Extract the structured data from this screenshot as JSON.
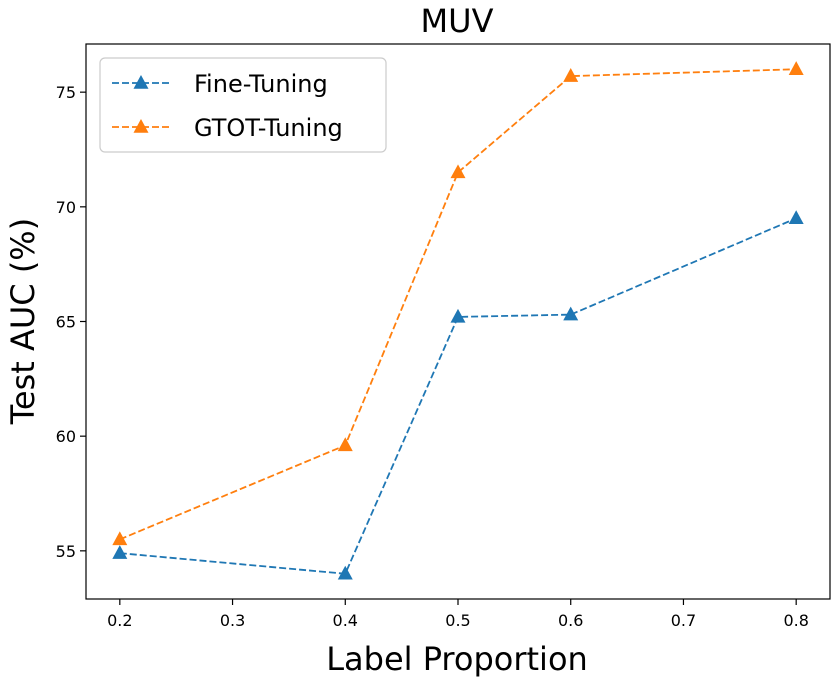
{
  "chart_data": {
    "type": "line",
    "title": "MUV",
    "xlabel": "Label Proportion",
    "ylabel": "Test AUC (%)",
    "x": [
      0.2,
      0.4,
      0.5,
      0.6,
      0.8
    ],
    "xticks": [
      "0.2",
      "0.3",
      "0.4",
      "0.5",
      "0.6",
      "0.7",
      "0.8"
    ],
    "yticks": [
      "55",
      "60",
      "65",
      "70",
      "75"
    ],
    "xlim": [
      0.17,
      0.83
    ],
    "ylim": [
      52.9,
      77.1
    ],
    "legend_position": "upper-left",
    "series": [
      {
        "name": "Fine-Tuning",
        "color": "#1f77b4",
        "values": [
          54.9,
          54.0,
          65.2,
          65.3,
          69.5
        ]
      },
      {
        "name": "GTOT-Tuning",
        "color": "#ff7f0e",
        "values": [
          55.5,
          59.6,
          71.5,
          75.7,
          76.0
        ]
      }
    ]
  }
}
